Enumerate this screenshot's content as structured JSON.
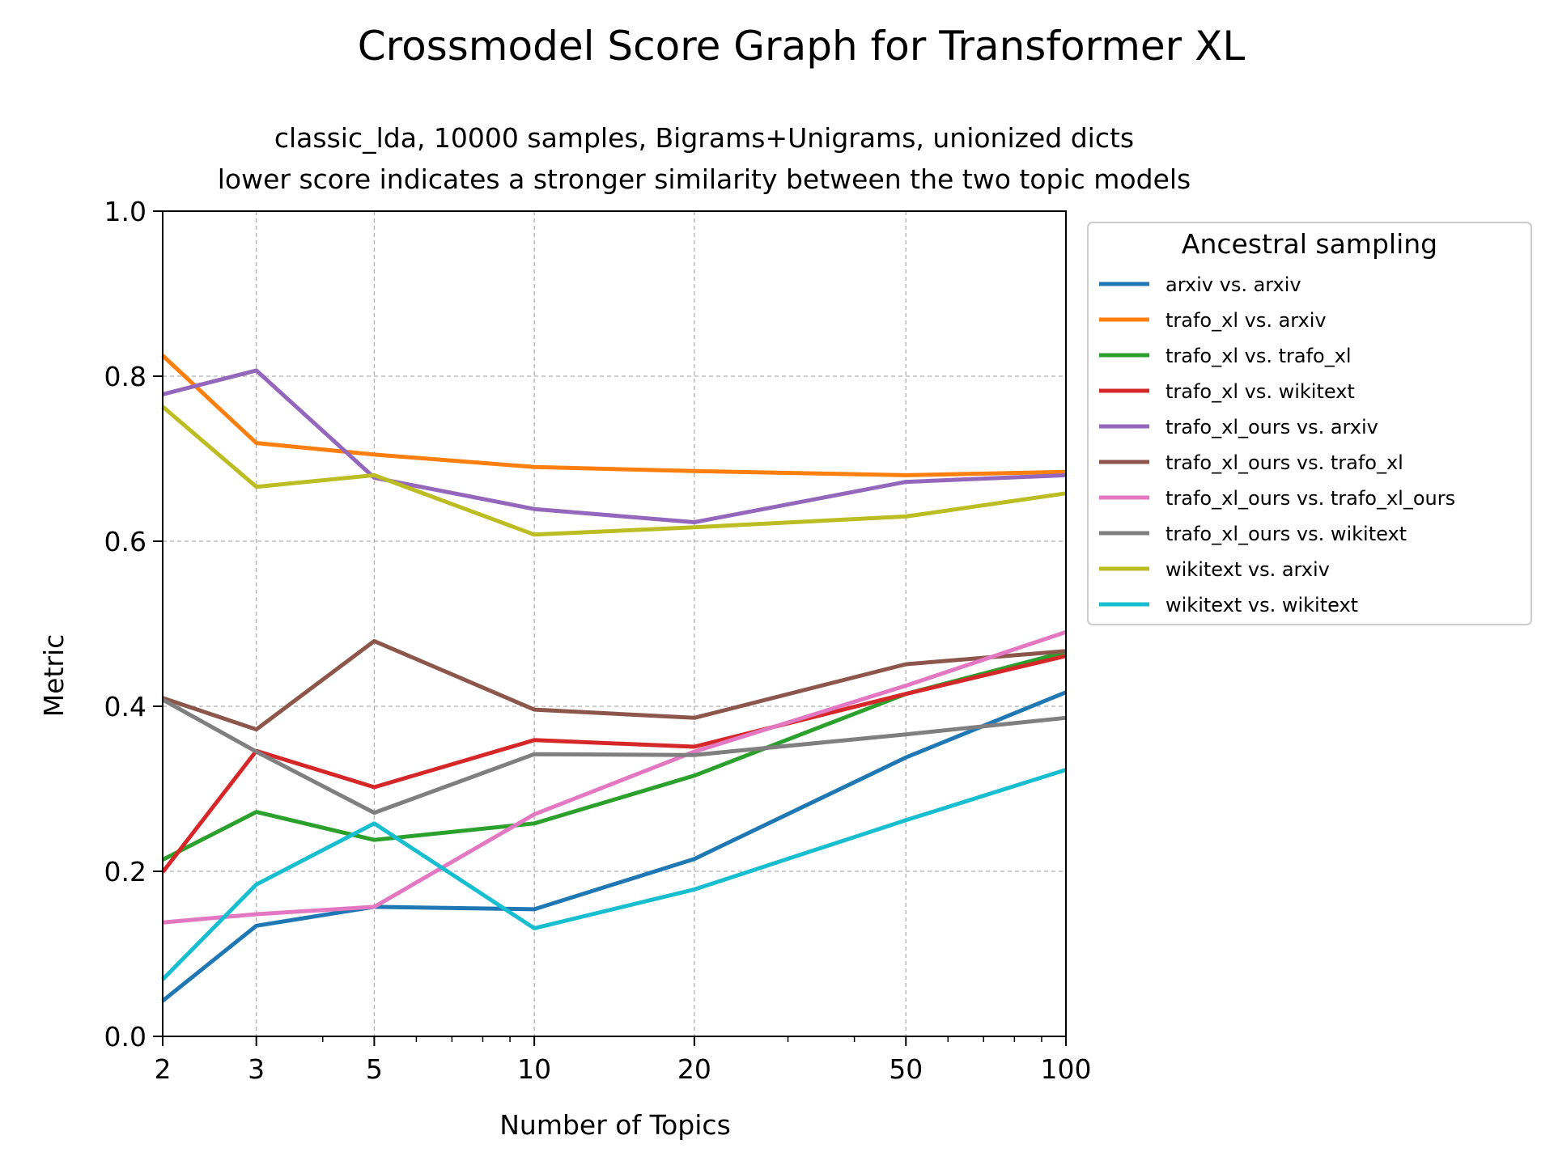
{
  "chart_data": {
    "type": "line",
    "title": "Crossmodel Score Graph for Transformer XL",
    "subtitle_lines": [
      "classic_lda, 10000 samples, Bigrams+Unigrams, unionized dicts",
      "lower score indicates a stronger similarity between the two topic models"
    ],
    "xlabel": "Number of Topics",
    "ylabel": "Metric",
    "xscale": "log",
    "x": [
      2,
      3,
      5,
      10,
      20,
      50,
      100
    ],
    "x_tick_labels": [
      "2",
      "3",
      "5",
      "10",
      "20",
      "50",
      "100"
    ],
    "xlim": [
      2,
      100
    ],
    "ylim": [
      0.0,
      1.0
    ],
    "y_ticks": [
      0.0,
      0.2,
      0.4,
      0.6,
      0.8,
      1.0
    ],
    "y_tick_labels": [
      "0.0",
      "0.2",
      "0.4",
      "0.6",
      "0.8",
      "1.0"
    ],
    "grid": true,
    "legend_title": "Ancestral sampling",
    "legend_position": "outside-right-top",
    "series": [
      {
        "name": "arxiv vs. arxiv",
        "color": "#1f77b4",
        "values": [
          0.043,
          0.134,
          0.157,
          0.154,
          0.215,
          0.338,
          0.417
        ]
      },
      {
        "name": "trafo_xl vs. arxiv",
        "color": "#ff7f0e",
        "values": [
          0.825,
          0.719,
          0.705,
          0.69,
          0.685,
          0.68,
          0.684
        ]
      },
      {
        "name": "trafo_xl vs. trafo_xl",
        "color": "#2ca02c",
        "values": [
          0.214,
          0.272,
          0.238,
          0.258,
          0.316,
          0.415,
          0.466
        ]
      },
      {
        "name": "trafo_xl vs. wikitext",
        "color": "#d62728",
        "values": [
          0.199,
          0.346,
          0.302,
          0.359,
          0.351,
          0.415,
          0.461
        ]
      },
      {
        "name": "trafo_xl_ours vs. arxiv",
        "color": "#9467bd",
        "values": [
          0.778,
          0.807,
          0.677,
          0.639,
          0.623,
          0.672,
          0.68
        ]
      },
      {
        "name": "trafo_xl_ours vs. trafo_xl",
        "color": "#8c564b",
        "values": [
          0.41,
          0.372,
          0.479,
          0.396,
          0.386,
          0.451,
          0.467
        ]
      },
      {
        "name": "trafo_xl_ours vs. trafo_xl_ours",
        "color": "#e377c2",
        "values": [
          0.138,
          0.148,
          0.157,
          0.269,
          0.345,
          0.425,
          0.49
        ]
      },
      {
        "name": "trafo_xl_ours vs. wikitext",
        "color": "#7f7f7f",
        "values": [
          0.408,
          0.345,
          0.271,
          0.342,
          0.341,
          0.366,
          0.386
        ]
      },
      {
        "name": "wikitext vs. arxiv",
        "color": "#bcbd22",
        "values": [
          0.763,
          0.666,
          0.68,
          0.608,
          0.617,
          0.63,
          0.658
        ]
      },
      {
        "name": "wikitext vs. wikitext",
        "color": "#17becf",
        "values": [
          0.069,
          0.184,
          0.258,
          0.131,
          0.178,
          0.262,
          0.323
        ]
      }
    ]
  }
}
